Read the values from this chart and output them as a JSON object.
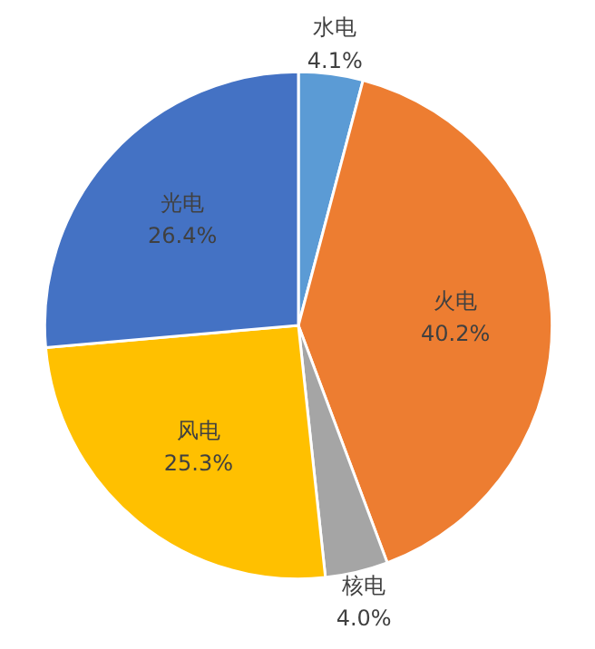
{
  "chart_data": {
    "type": "pie",
    "categories": [
      "水电",
      "火电",
      "核电",
      "风电",
      "光电"
    ],
    "values": [
      4.1,
      40.2,
      4.0,
      25.3,
      26.4
    ],
    "colors": [
      "#5b9bd5",
      "#ed7d31",
      "#a5a5a5",
      "#ffc000",
      "#4472c4"
    ],
    "value_labels": [
      "4.1%",
      "40.2%",
      "4.0%",
      "25.3%",
      "26.4%"
    ]
  }
}
